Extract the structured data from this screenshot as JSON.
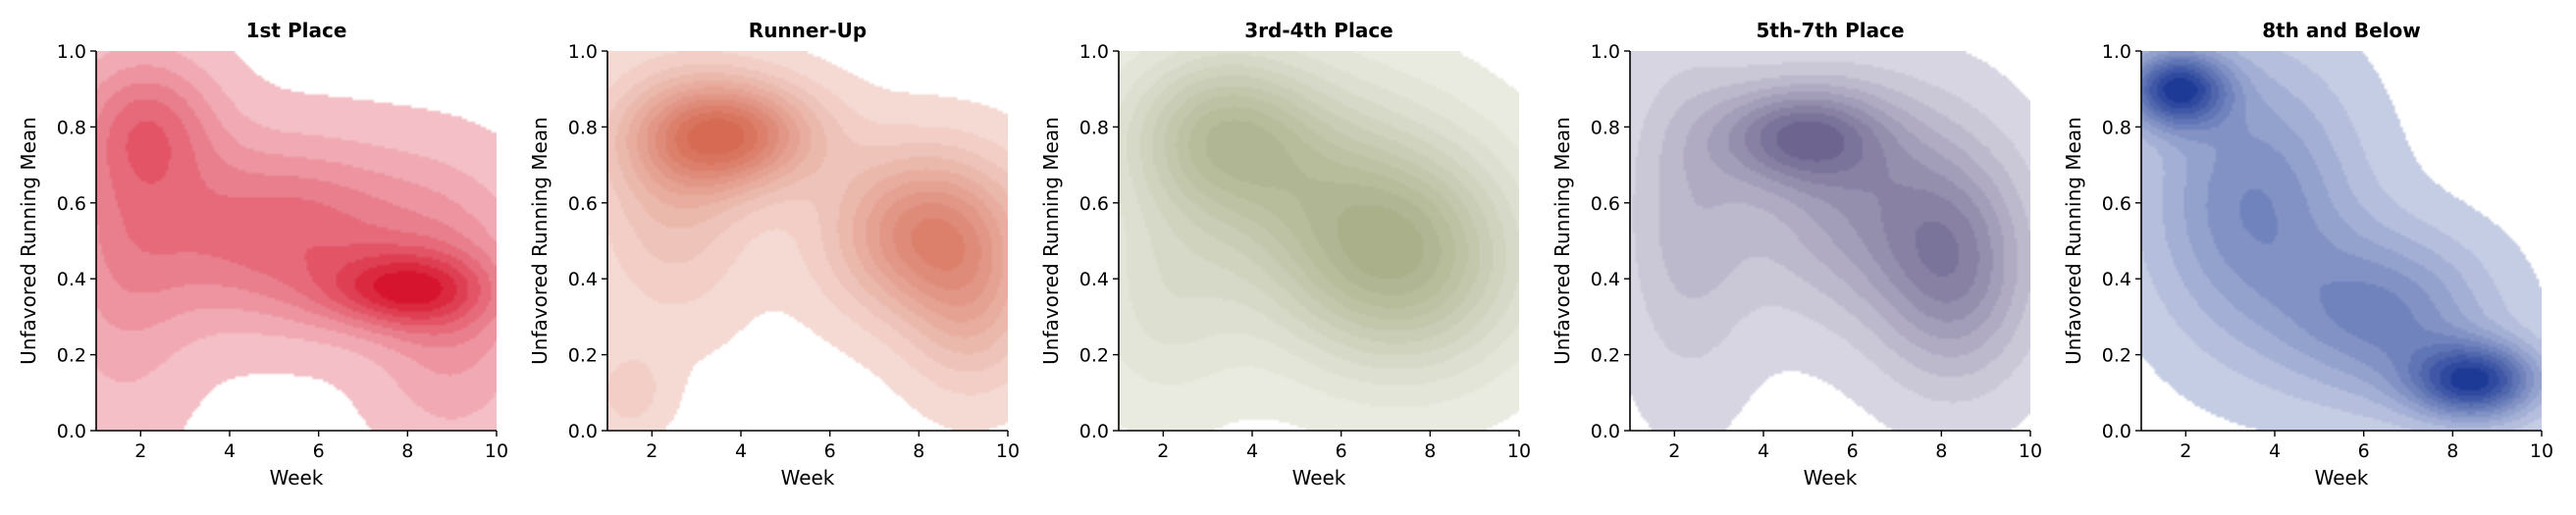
{
  "chart_data": [
    {
      "type": "kde-density",
      "title": "1st Place",
      "xlabel": "Week",
      "ylabel": "Unfavored Running Mean",
      "xlim": [
        1,
        10
      ],
      "ylim": [
        0,
        1
      ],
      "xticks": [
        2,
        4,
        6,
        8,
        10
      ],
      "yticks": [
        0.0,
        0.2,
        0.4,
        0.6,
        0.8,
        1.0
      ],
      "color": "#d7142d",
      "levels": 9,
      "density_peaks": [
        {
          "x": 7.9,
          "y": 0.37,
          "sx": 1.3,
          "sy": 0.07,
          "w": 1.0
        },
        {
          "x": 5.2,
          "y": 0.52,
          "sx": 2.4,
          "sy": 0.16,
          "w": 0.9
        },
        {
          "x": 2.2,
          "y": 0.8,
          "sx": 1.1,
          "sy": 0.13,
          "w": 0.7
        },
        {
          "x": 1.6,
          "y": 0.45,
          "sx": 1.1,
          "sy": 0.3,
          "w": 0.4
        },
        {
          "x": 9.0,
          "y": 0.3,
          "sx": 1.2,
          "sy": 0.22,
          "w": 0.5
        }
      ]
    },
    {
      "type": "kde-density",
      "title": "Runner-Up",
      "xlabel": "Week",
      "ylabel": "Unfavored Running Mean",
      "xlim": [
        1,
        10
      ],
      "ylim": [
        0,
        1
      ],
      "xticks": [
        2,
        4,
        6,
        8,
        10
      ],
      "yticks": [
        0.0,
        0.2,
        0.4,
        0.6,
        0.8,
        1.0
      ],
      "color": "#d66a52",
      "levels": 11,
      "density_peaks": [
        {
          "x": 3.7,
          "y": 0.78,
          "sx": 1.4,
          "sy": 0.1,
          "w": 1.0
        },
        {
          "x": 8.2,
          "y": 0.52,
          "sx": 1.5,
          "sy": 0.15,
          "w": 0.85
        },
        {
          "x": 2.5,
          "y": 0.62,
          "sx": 1.2,
          "sy": 0.22,
          "w": 0.35
        },
        {
          "x": 1.5,
          "y": 0.1,
          "sx": 0.6,
          "sy": 0.08,
          "w": 0.2
        },
        {
          "x": 9.2,
          "y": 0.3,
          "sx": 1.0,
          "sy": 0.15,
          "w": 0.35
        }
      ]
    },
    {
      "type": "kde-density",
      "title": "3rd-4th Place",
      "xlabel": "Week",
      "ylabel": "Unfavored Running Mean",
      "xlim": [
        1,
        10
      ],
      "ylim": [
        0,
        1
      ],
      "xticks": [
        2,
        4,
        6,
        8,
        10
      ],
      "yticks": [
        0.0,
        0.2,
        0.4,
        0.6,
        0.8,
        1.0
      ],
      "color": "#aab08a",
      "levels": 11,
      "density_peaks": [
        {
          "x": 3.3,
          "y": 0.78,
          "sx": 1.5,
          "sy": 0.15,
          "w": 0.9
        },
        {
          "x": 7.5,
          "y": 0.45,
          "sx": 1.8,
          "sy": 0.2,
          "w": 1.0
        },
        {
          "x": 5.5,
          "y": 0.6,
          "sx": 2.0,
          "sy": 0.22,
          "w": 0.6
        },
        {
          "x": 2.0,
          "y": 0.35,
          "sx": 1.2,
          "sy": 0.2,
          "w": 0.3
        }
      ]
    },
    {
      "type": "kde-density",
      "title": "5th-7th Place",
      "xlabel": "Week",
      "ylabel": "Unfavored Running Mean",
      "xlim": [
        1,
        10
      ],
      "ylim": [
        0,
        1
      ],
      "xticks": [
        2,
        4,
        6,
        8,
        10
      ],
      "yticks": [
        0.0,
        0.2,
        0.4,
        0.6,
        0.8,
        1.0
      ],
      "color": "#6d6590",
      "levels": 9,
      "density_peaks": [
        {
          "x": 4.8,
          "y": 0.78,
          "sx": 1.3,
          "sy": 0.09,
          "w": 1.0
        },
        {
          "x": 8.3,
          "y": 0.42,
          "sx": 1.2,
          "sy": 0.2,
          "w": 0.85
        },
        {
          "x": 6.2,
          "y": 0.6,
          "sx": 1.8,
          "sy": 0.2,
          "w": 0.7
        },
        {
          "x": 2.3,
          "y": 0.55,
          "sx": 1.0,
          "sy": 0.3,
          "w": 0.4
        }
      ]
    },
    {
      "type": "kde-density",
      "title": "8th and Below",
      "xlabel": "Week",
      "ylabel": "Unfavored Running Mean",
      "xlim": [
        1,
        10
      ],
      "ylim": [
        0,
        1
      ],
      "xticks": [
        2,
        4,
        6,
        8,
        10
      ],
      "yticks": [
        0.0,
        0.2,
        0.4,
        0.6,
        0.8,
        1.0
      ],
      "color": "#1d3a96",
      "levels": 11,
      "density_peaks": [
        {
          "x": 1.8,
          "y": 0.9,
          "sx": 0.8,
          "sy": 0.07,
          "w": 1.0
        },
        {
          "x": 8.5,
          "y": 0.13,
          "sx": 1.0,
          "sy": 0.07,
          "w": 1.0
        },
        {
          "x": 3.5,
          "y": 0.6,
          "sx": 1.6,
          "sy": 0.25,
          "w": 0.55
        },
        {
          "x": 6.5,
          "y": 0.3,
          "sx": 1.6,
          "sy": 0.15,
          "w": 0.55
        }
      ]
    }
  ]
}
